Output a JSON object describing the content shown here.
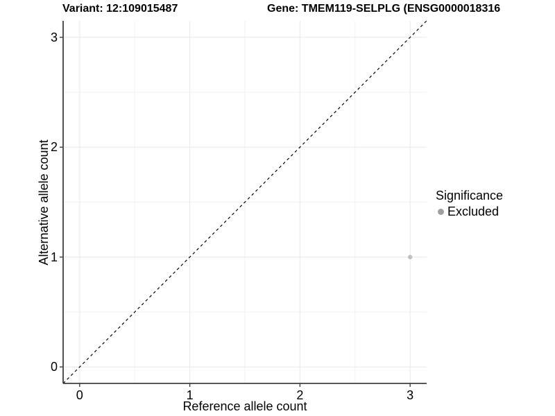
{
  "titles": {
    "variant": "Variant: 12:109015487",
    "gene": "Gene: TMEM119-SELPLG (ENSG0000018316"
  },
  "colors": {
    "background": "#ffffff",
    "text": "#000000",
    "axis_line": "#3f3f3f",
    "grid_major": "#e8e8e8",
    "grid_minor": "#f2f2f2",
    "identity_line": "#000000",
    "point": "#c0c0c0",
    "legend_dot": "#a0a0a0"
  },
  "chart_data": {
    "type": "scatter",
    "title": "Variant: 12:109015487 | Gene: TMEM119-SELPLG (ENSG0000018316",
    "xlabel": "Reference allele count",
    "ylabel": "Alternative allele count",
    "xlim": [
      -0.15,
      3.15
    ],
    "ylim": [
      -0.15,
      3.15
    ],
    "x_ticks": [
      0,
      1,
      2,
      3
    ],
    "y_ticks": [
      0,
      1,
      2,
      3
    ],
    "x_minor_ticks": [
      0.5,
      1.5,
      2.5
    ],
    "y_minor_ticks": [
      0.5,
      1.5,
      2.5
    ],
    "grid": true,
    "identity_line": {
      "slope": 1,
      "intercept": 0,
      "style": "dashed"
    },
    "series": [
      {
        "name": "Excluded",
        "points": [
          {
            "x": 3,
            "y": 1
          }
        ]
      }
    ],
    "legend": {
      "title": "Significance",
      "position": "right",
      "entries": [
        {
          "label": "Excluded"
        }
      ]
    }
  }
}
